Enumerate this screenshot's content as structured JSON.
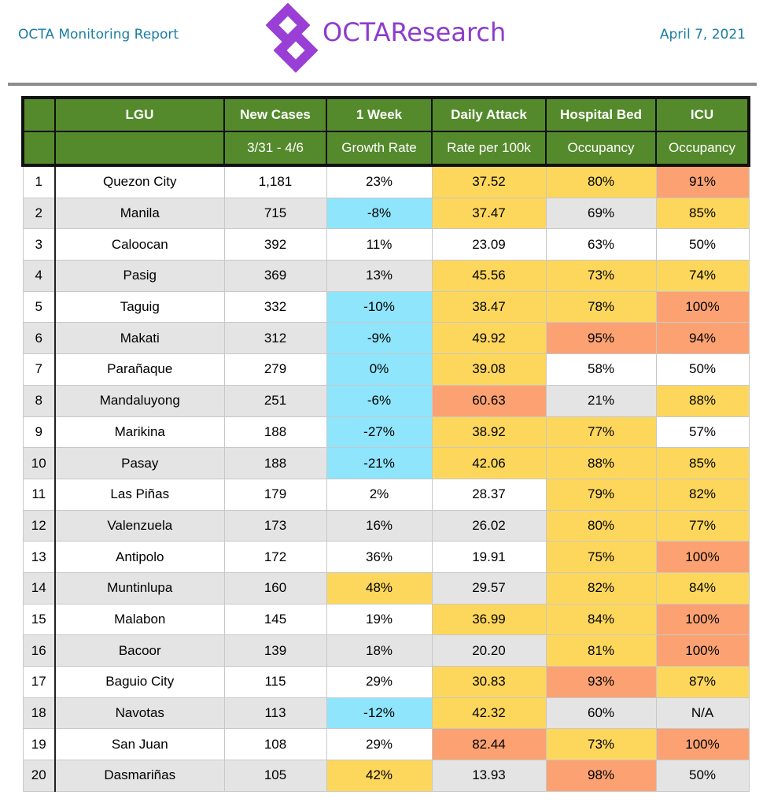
{
  "header": {
    "report": "OCTA Monitoring Report",
    "brand": "OCTAResearch",
    "date": "April 7, 2021"
  },
  "table": {
    "header_top": [
      "LGU",
      "New Cases",
      "1 Week",
      "Daily Attack",
      "Hospital Bed",
      "ICU"
    ],
    "header_sub": [
      "3/31 - 4/6",
      "Growth Rate",
      "Rate per 100k",
      "Occupancy",
      "Occupancy"
    ],
    "rows": [
      [
        "1",
        "Quezon City",
        "1,181",
        "23%",
        "37.52",
        "80%",
        "91%"
      ],
      [
        "2",
        "Manila",
        "715",
        "-8%",
        "37.47",
        "69%",
        "85%"
      ],
      [
        "3",
        "Caloocan",
        "392",
        "11%",
        "23.09",
        "63%",
        "50%"
      ],
      [
        "4",
        "Pasig",
        "369",
        "13%",
        "45.56",
        "73%",
        "74%"
      ],
      [
        "5",
        "Taguig",
        "332",
        "-10%",
        "38.47",
        "78%",
        "100%"
      ],
      [
        "6",
        "Makati",
        "312",
        "-9%",
        "49.92",
        "95%",
        "94%"
      ],
      [
        "7",
        "Parañaque",
        "279",
        "0%",
        "39.08",
        "58%",
        "50%"
      ],
      [
        "8",
        "Mandaluyong",
        "251",
        "-6%",
        "60.63",
        "21%",
        "88%"
      ],
      [
        "9",
        "Marikina",
        "188",
        "-27%",
        "38.92",
        "77%",
        "57%"
      ],
      [
        "10",
        "Pasay",
        "188",
        "-21%",
        "42.06",
        "88%",
        "85%"
      ],
      [
        "11",
        "Las Piñas",
        "179",
        "2%",
        "28.37",
        "79%",
        "82%"
      ],
      [
        "12",
        "Valenzuela",
        "173",
        "16%",
        "26.02",
        "80%",
        "77%"
      ],
      [
        "13",
        "Antipolo",
        "172",
        "36%",
        "19.91",
        "75%",
        "100%"
      ],
      [
        "14",
        "Muntinlupa",
        "160",
        "48%",
        "29.57",
        "82%",
        "84%"
      ],
      [
        "15",
        "Malabon",
        "145",
        "19%",
        "36.99",
        "84%",
        "100%"
      ],
      [
        "16",
        "Bacoor",
        "139",
        "18%",
        "20.20",
        "81%",
        "100%"
      ],
      [
        "17",
        "Baguio City",
        "115",
        "29%",
        "30.83",
        "93%",
        "87%"
      ],
      [
        "18",
        "Navotas",
        "113",
        "-12%",
        "42.32",
        "60%",
        "N/A"
      ],
      [
        "19",
        "San Juan",
        "108",
        "29%",
        "82.44",
        "73%",
        "100%"
      ],
      [
        "20",
        "Dasmariñas",
        "105",
        "42%",
        "13.93",
        "98%",
        "50%"
      ]
    ]
  }
}
